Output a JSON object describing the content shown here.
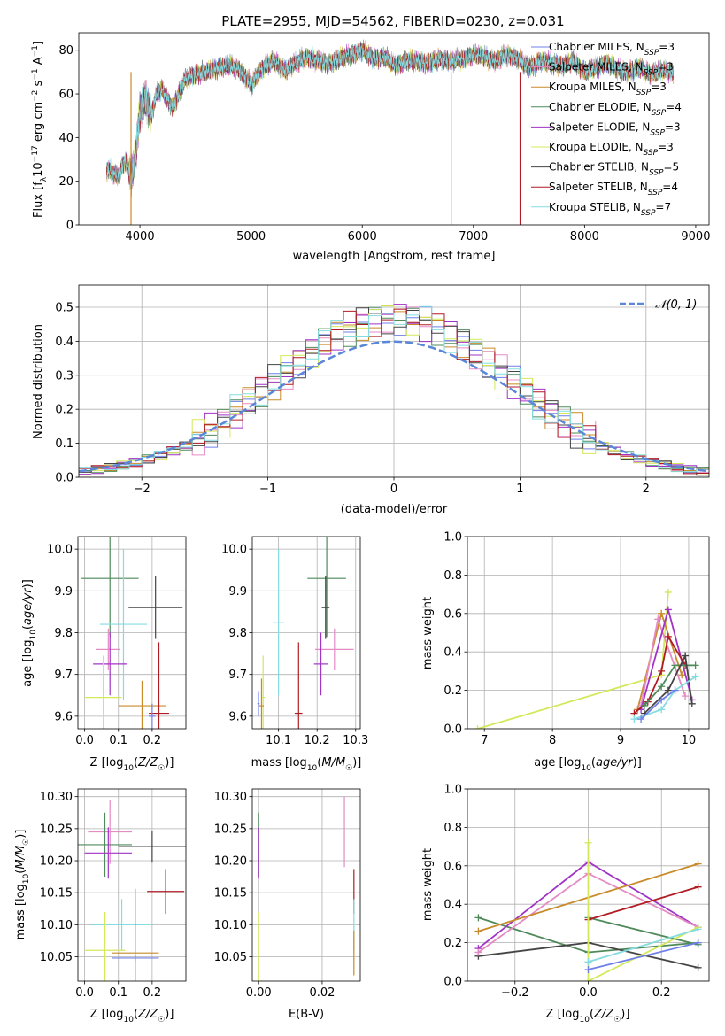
{
  "figure_title": "PLATE=2955, MJD=54562, FIBERID=0230, z=0.031",
  "colors": {
    "Chabrier MILES": "#6f7fe8",
    "Salpeter MILES": "#e58ac4",
    "Kroupa MILES": "#c98a2a",
    "Chabrier ELODIE": "#4f8a5a",
    "Salpeter ELODIE": "#a133c6",
    "Kroupa ELODIE": "#d4e85a",
    "Chabrier STELIB": "#444444",
    "Salpeter STELIB": "#b01c24",
    "Kroupa STELIB": "#84dce0",
    "normal": "#5b87d8"
  },
  "chart_data": [
    {
      "type": "line",
      "title": "PLATE=2955, MJD=54562, FIBERID=0230, z=0.031",
      "xlabel": "wavelength [Angstrom, rest frame]",
      "ylabel": "Flux [f_λ 10^-17 erg cm^-2 s^-1 A^-1]",
      "xlim": [
        3450,
        9120
      ],
      "ylim": [
        0,
        88
      ],
      "xticks": [
        4000,
        5000,
        6000,
        7000,
        8000,
        9000
      ],
      "yticks": [
        0,
        20,
        40,
        60,
        80
      ],
      "legend_location": "right",
      "grid": false,
      "spectrum_x": [
        3700,
        3800,
        3870,
        3920,
        3960,
        4000,
        4050,
        4100,
        4150,
        4200,
        4250,
        4300,
        4350,
        4400,
        4450,
        4500,
        4600,
        4700,
        4800,
        4900,
        5000,
        5100,
        5200,
        5300,
        5400,
        5500,
        5600,
        5700,
        5800,
        5900,
        6000,
        6100,
        6200,
        6300,
        6400,
        6500,
        6600,
        6700,
        6800,
        6900,
        7000,
        7100,
        7200,
        7300,
        7400,
        7500,
        7600,
        7700,
        7800,
        7900,
        8000,
        8100,
        8200,
        8300,
        8400,
        8500,
        8600,
        8700,
        8800
      ],
      "spectrum_y": [
        26,
        22,
        30,
        22,
        31,
        52,
        58,
        50,
        60,
        62,
        57,
        54,
        60,
        66,
        68,
        69,
        70,
        72,
        73,
        71,
        64,
        72,
        75,
        71,
        74,
        77,
        75,
        74,
        76,
        78,
        80,
        76,
        77,
        73,
        75,
        75,
        74,
        76,
        75,
        76,
        78,
        77,
        75,
        78,
        76,
        72,
        75,
        74,
        73,
        75,
        70,
        72,
        74,
        71,
        70,
        72,
        69,
        71,
        70
      ],
      "series": [
        {
          "name": "Chabrier MILES, N_SSP=3",
          "label_main": "Chabrier MILES, N",
          "label_sub": "SSP",
          "label_tail": "=3"
        },
        {
          "name": "Salpeter MILES, N_SSP=3",
          "label_main": "Salpeter MILES, N",
          "label_sub": "SSP",
          "label_tail": "=3"
        },
        {
          "name": "Kroupa MILES, N_SSP=3",
          "label_main": "Kroupa MILES, N",
          "label_sub": "SSP",
          "label_tail": "=3"
        },
        {
          "name": "Chabrier ELODIE, N_SSP=4",
          "label_main": "Chabrier ELODIE, N",
          "label_sub": "SSP",
          "label_tail": "=4"
        },
        {
          "name": "Salpeter ELODIE, N_SSP=3",
          "label_main": "Salpeter ELODIE, N",
          "label_sub": "SSP",
          "label_tail": "=3"
        },
        {
          "name": "Kroupa ELODIE, N_SSP=3",
          "label_main": "Kroupa ELODIE, N",
          "label_sub": "SSP",
          "label_tail": "=3"
        },
        {
          "name": "Chabrier STELIB, N_SSP=5",
          "label_main": "Chabrier STELIB, N",
          "label_sub": "SSP",
          "label_tail": "=5"
        },
        {
          "name": "Salpeter STELIB, N_SSP=4",
          "label_main": "Salpeter STELIB, N",
          "label_sub": "SSP",
          "label_tail": "=4"
        },
        {
          "name": "Kroupa STELIB, N_SSP=7",
          "label_main": "Kroupa STELIB, N",
          "label_sub": "SSP",
          "label_tail": "=7"
        }
      ],
      "dropouts": [
        {
          "x": 3920,
          "color": "Kroupa MILES"
        },
        {
          "x": 6800,
          "color": "Kroupa MILES"
        },
        {
          "x": 7420,
          "color": "Salpeter STELIB"
        }
      ]
    },
    {
      "type": "histogram",
      "xlabel": "(data-model)/error",
      "ylabel": "Normed distribution",
      "xlim": [
        -2.5,
        2.5
      ],
      "ylim": [
        0,
        0.565
      ],
      "xticks": [
        -2,
        -1,
        0,
        1,
        2
      ],
      "yticks": [
        0.0,
        0.1,
        0.2,
        0.3,
        0.4,
        0.5
      ],
      "grid": true,
      "legend_location": "upper right",
      "curve_label": "𝒩(0, 1)",
      "bin_edges": [
        -2.5,
        -2.4,
        -2.3,
        -2.2,
        -2.1,
        -2.0,
        -1.9,
        -1.8,
        -1.7,
        -1.6,
        -1.5,
        -1.4,
        -1.3,
        -1.2,
        -1.1,
        -1.0,
        -0.9,
        -0.8,
        -0.7,
        -0.6,
        -0.5,
        -0.4,
        -0.3,
        -0.2,
        -0.1,
        0.0,
        0.1,
        0.2,
        0.3,
        0.4,
        0.5,
        0.6,
        0.7,
        0.8,
        0.9,
        1.0,
        1.1,
        1.2,
        1.3,
        1.4,
        1.5,
        1.6,
        1.7,
        1.8,
        1.9,
        2.0,
        2.1,
        2.2,
        2.3,
        2.4,
        2.5
      ]
    },
    {
      "type": "errorbar",
      "xlabel": "Z [log10(Z/Z☉)]",
      "ylabel": "age [log10(age/yr)]",
      "xlim": [
        -0.02,
        0.3
      ],
      "ylim": [
        9.57,
        10.03
      ],
      "xticks": [
        0.0,
        0.1,
        0.2
      ],
      "yticks": [
        9.6,
        9.7,
        9.8,
        9.9,
        10.0
      ],
      "grid": true,
      "points": [
        {
          "model": "Chabrier ELODIE",
          "x": 0.075,
          "xerr": 0.085,
          "y": 9.93,
          "yerr": 0.14
        },
        {
          "model": "Chabrier STELIB",
          "x": 0.21,
          "xerr": 0.08,
          "y": 9.86,
          "yerr": 0.075
        },
        {
          "model": "Kroupa STELIB",
          "x": 0.115,
          "xerr": 0.07,
          "y": 9.82,
          "yerr": 0.18
        },
        {
          "model": "Salpeter MILES",
          "x": 0.07,
          "xerr": 0.035,
          "y": 9.76,
          "yerr": 0.05
        },
        {
          "model": "Salpeter ELODIE",
          "x": 0.075,
          "xerr": 0.05,
          "y": 9.725,
          "yerr": 0.075
        },
        {
          "model": "Kroupa ELODIE",
          "x": 0.055,
          "xerr": 0.055,
          "y": 9.645,
          "yerr": 0.1
        },
        {
          "model": "Kroupa MILES",
          "x": 0.17,
          "xerr": 0.07,
          "y": 9.625,
          "yerr": 0.06
        },
        {
          "model": "Salpeter STELIB",
          "x": 0.22,
          "xerr": 0.03,
          "y": 9.607,
          "yerr": 0.17
        },
        {
          "model": "Chabrier MILES",
          "x": 0.2,
          "xerr": 0.01,
          "y": 9.6,
          "yerr": 0.03
        }
      ]
    },
    {
      "type": "errorbar",
      "xlabel": "mass [log10(M/M☉)]",
      "ylabel": "",
      "xlim": [
        10.032,
        10.312
      ],
      "ylim": [
        9.57,
        10.03
      ],
      "xticks": [
        10.1,
        10.2,
        10.3
      ],
      "yticks": [
        9.6,
        9.7,
        9.8,
        9.9,
        10.0
      ],
      "grid": true,
      "points": [
        {
          "model": "Chabrier ELODIE",
          "x": 10.225,
          "xerr": 0.05,
          "y": 9.93,
          "yerr": 0.14
        },
        {
          "model": "Chabrier STELIB",
          "x": 10.222,
          "xerr": 0.01,
          "y": 9.86,
          "yerr": 0.075
        },
        {
          "model": "Kroupa STELIB",
          "x": 10.1,
          "xerr": 0.015,
          "y": 9.825,
          "yerr": 0.175
        },
        {
          "model": "Salpeter MILES",
          "x": 10.245,
          "xerr": 0.05,
          "y": 9.76,
          "yerr": 0.05
        },
        {
          "model": "Salpeter ELODIE",
          "x": 10.21,
          "xerr": 0.018,
          "y": 9.725,
          "yerr": 0.075
        },
        {
          "model": "Kroupa ELODIE",
          "x": 10.06,
          "xerr": 0.005,
          "y": 9.645,
          "yerr": 0.1
        },
        {
          "model": "Kroupa MILES",
          "x": 10.056,
          "xerr": 0.006,
          "y": 9.625,
          "yerr": 0.065
        },
        {
          "model": "Salpeter STELIB",
          "x": 10.152,
          "xerr": 0.01,
          "y": 9.607,
          "yerr": 0.17
        },
        {
          "model": "Chabrier MILES",
          "x": 10.048,
          "xerr": 0.003,
          "y": 9.63,
          "yerr": 0.03
        }
      ]
    },
    {
      "type": "line",
      "xlabel": "age  [log10(age/yr)]",
      "ylabel": "mass weight",
      "xlim": [
        6.75,
        10.3
      ],
      "ylim": [
        0.0,
        1.0
      ],
      "xticks": [
        7,
        8,
        9,
        10
      ],
      "yticks": [
        0.0,
        0.2,
        0.4,
        0.6,
        0.8,
        1.0
      ],
      "grid": true,
      "series": [
        {
          "model": "Kroupa ELODIE",
          "x": [
            6.9,
            9.6,
            9.7
          ],
          "y": [
            0.0,
            0.28,
            0.71
          ]
        },
        {
          "model": "Kroupa MILES",
          "x": [
            9.25,
            9.6,
            9.9
          ],
          "y": [
            0.1,
            0.6,
            0.28
          ]
        },
        {
          "model": "Salpeter MILES",
          "x": [
            9.3,
            9.55,
            9.95
          ],
          "y": [
            0.12,
            0.57,
            0.17
          ]
        },
        {
          "model": "Salpeter ELODIE",
          "x": [
            9.3,
            9.7,
            10.05
          ],
          "y": [
            0.1,
            0.62,
            0.15
          ]
        },
        {
          "model": "Salpeter STELIB",
          "x": [
            9.2,
            9.4,
            9.6,
            9.7,
            9.95
          ],
          "y": [
            0.08,
            0.14,
            0.3,
            0.48,
            0.33
          ]
        },
        {
          "model": "Chabrier ELODIE",
          "x": [
            9.35,
            9.6,
            9.8,
            10.1
          ],
          "y": [
            0.12,
            0.22,
            0.33,
            0.33
          ]
        },
        {
          "model": "Chabrier STELIB",
          "x": [
            9.35,
            9.7,
            9.95,
            10.05
          ],
          "y": [
            0.08,
            0.2,
            0.38,
            0.13
          ]
        },
        {
          "model": "Kroupa STELIB",
          "x": [
            9.2,
            9.6,
            9.8,
            10.1
          ],
          "y": [
            0.05,
            0.1,
            0.2,
            0.27
          ]
        },
        {
          "model": "Chabrier MILES",
          "x": [
            9.3,
            9.6,
            9.8
          ],
          "y": [
            0.05,
            0.15,
            0.2
          ]
        }
      ]
    },
    {
      "type": "errorbar",
      "xlabel": "Z [log10(Z/Z☉)]",
      "ylabel": "mass [log10(M/M☉)]",
      "xlim": [
        -0.02,
        0.3
      ],
      "ylim": [
        10.012,
        10.312
      ],
      "xticks": [
        0.0,
        0.1,
        0.2
      ],
      "yticks": [
        10.05,
        10.1,
        10.15,
        10.2,
        10.25,
        10.3
      ],
      "grid": true,
      "points": [
        {
          "model": "Salpeter MILES",
          "x": 0.075,
          "xerr": 0.065,
          "y": 10.245,
          "yerr": 0.05
        },
        {
          "model": "Chabrier ELODIE",
          "x": 0.06,
          "xerr": 0.08,
          "y": 10.225,
          "yerr": 0.05
        },
        {
          "model": "Chabrier STELIB",
          "x": 0.2,
          "xerr": 0.1,
          "y": 10.222,
          "yerr": 0.025
        },
        {
          "model": "Salpeter ELODIE",
          "x": 0.07,
          "xerr": 0.07,
          "y": 10.212,
          "yerr": 0.04
        },
        {
          "model": "Salpeter STELIB",
          "x": 0.24,
          "xerr": 0.055,
          "y": 10.152,
          "yerr": 0.035
        },
        {
          "model": "Kroupa STELIB",
          "x": 0.11,
          "xerr": 0.09,
          "y": 10.1,
          "yerr": 0.04
        },
        {
          "model": "Kroupa ELODIE",
          "x": 0.06,
          "xerr": 0.06,
          "y": 10.06,
          "yerr": 0.06
        },
        {
          "model": "Kroupa MILES",
          "x": 0.15,
          "xerr": 0.07,
          "y": 10.056,
          "yerr": 0.1
        },
        {
          "model": "Chabrier MILES",
          "x": 0.15,
          "xerr": 0.07,
          "y": 10.048,
          "yerr": 0.005
        }
      ]
    },
    {
      "type": "errorbar",
      "xlabel": "E(B-V)",
      "ylabel": "",
      "xlim": [
        -0.002,
        0.032
      ],
      "ylim": [
        10.012,
        10.312
      ],
      "xticks": [
        0.0,
        0.02
      ],
      "yticks": [
        10.05,
        10.1,
        10.15,
        10.2,
        10.25,
        10.3
      ],
      "grid": true,
      "points": [
        {
          "model": "Chabrier ELODIE",
          "x": 0.0,
          "xerr": 0.0,
          "y": 10.225,
          "yerr": 0.05
        },
        {
          "model": "Salpeter ELODIE",
          "x": 0.0,
          "xerr": 0.0,
          "y": 10.212,
          "yerr": 0.04
        },
        {
          "model": "Kroupa ELODIE",
          "x": 0.0,
          "xerr": 0.0,
          "y": 10.06,
          "yerr": 0.06
        },
        {
          "model": "Salpeter MILES",
          "x": 0.027,
          "xerr": 0.0,
          "y": 10.245,
          "yerr": 0.055
        },
        {
          "model": "Salpeter STELIB",
          "x": 0.03,
          "xerr": 0.0,
          "y": 10.152,
          "yerr": 0.035
        },
        {
          "model": "Kroupa STELIB",
          "x": 0.03,
          "xerr": 0.0,
          "y": 10.1,
          "yerr": 0.04
        },
        {
          "model": "Kroupa MILES",
          "x": 0.03,
          "xerr": 0.0,
          "y": 10.056,
          "yerr": 0.035
        }
      ]
    },
    {
      "type": "line",
      "xlabel": "Z [log10(Z/Z☉)]",
      "ylabel": "mass weight",
      "xlim": [
        -0.33,
        0.33
      ],
      "ylim": [
        0.0,
        1.0
      ],
      "xticks": [
        -0.2,
        0.0,
        0.2
      ],
      "yticks": [
        0.0,
        0.2,
        0.4,
        0.6,
        0.8,
        1.0
      ],
      "grid": true,
      "series": [
        {
          "model": "Chabrier ELODIE",
          "x": [
            -0.3,
            0.0,
            0.3
          ],
          "y": [
            0.33,
            0.15,
            0.2
          ]
        },
        {
          "model": "Chabrier ELODIE",
          "x": [
            0.0,
            0.3
          ],
          "y": [
            0.33,
            0.19
          ]
        },
        {
          "model": "Chabrier STELIB",
          "x": [
            -0.3,
            0.0,
            0.3
          ],
          "y": [
            0.13,
            0.2,
            0.07
          ]
        },
        {
          "model": "Salpeter ELODIE",
          "x": [
            -0.3,
            0.0,
            0.3
          ],
          "y": [
            0.17,
            0.62,
            0.28
          ]
        },
        {
          "model": "Salpeter MILES",
          "x": [
            -0.3,
            0.0,
            0.3
          ],
          "y": [
            0.15,
            0.56,
            0.28
          ]
        },
        {
          "model": "Kroupa MILES",
          "x": [
            -0.3,
            0.3
          ],
          "y": [
            0.26,
            0.61
          ]
        },
        {
          "model": "Salpeter STELIB",
          "x": [
            0.0,
            0.3
          ],
          "y": [
            0.32,
            0.49
          ]
        },
        {
          "model": "Kroupa ELODIE",
          "x": [
            0.0,
            0.0,
            0.3
          ],
          "y": [
            0.72,
            0.0,
            0.28
          ]
        },
        {
          "model": "Kroupa STELIB",
          "x": [
            0.0,
            0.3
          ],
          "y": [
            0.1,
            0.27
          ]
        },
        {
          "model": "Chabrier MILES",
          "x": [
            0.0,
            0.3
          ],
          "y": [
            0.06,
            0.2
          ]
        }
      ]
    }
  ]
}
